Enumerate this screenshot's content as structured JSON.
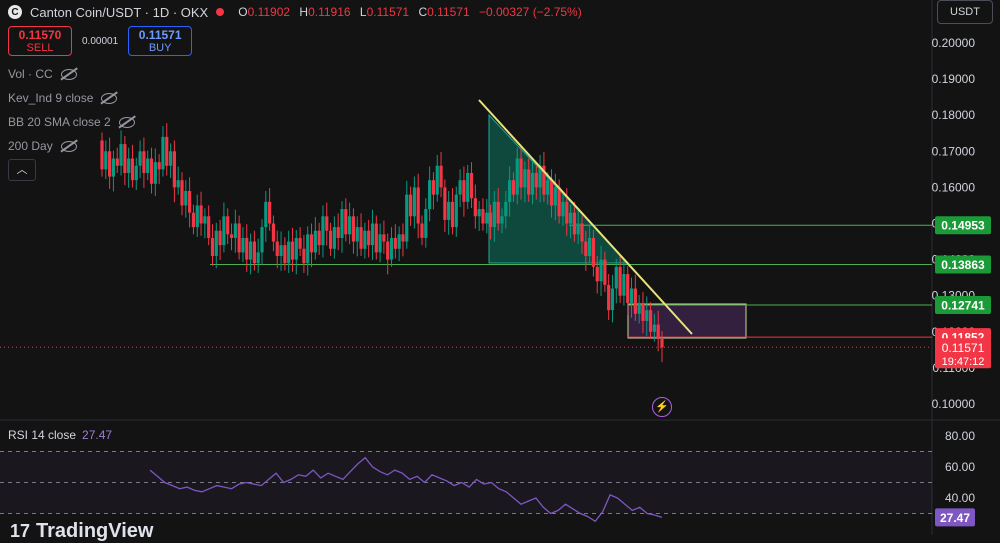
{
  "header": {
    "logo_letter": "C",
    "title": "Canton Coin/USDT · 1D · OKX",
    "ohlc": [
      {
        "k": "O",
        "v": "0.11902"
      },
      {
        "k": "H",
        "v": "0.11916"
      },
      {
        "k": "L",
        "v": "0.11571"
      },
      {
        "k": "C",
        "v": "0.11571"
      }
    ],
    "change": "−0.00327 (−2.75%)"
  },
  "trade": {
    "sell_price": "0.11570",
    "sell_label": "SELL",
    "spread": "0.00001",
    "buy_price": "0.11571",
    "buy_label": "BUY"
  },
  "indicators": [
    {
      "label": "Vol · CC"
    },
    {
      "label": "Kev_Ind 9 close"
    },
    {
      "label": "BB 20 SMA close 2"
    },
    {
      "label": "200 Day"
    }
  ],
  "collapse_glyph": "︿",
  "currency_button": "USDT",
  "rsi": {
    "label": "RSI 14 close",
    "value": "27.47"
  },
  "branding": {
    "mark": "17",
    "name": "TradingView"
  },
  "bolt_glyph": "⚡",
  "colors": {
    "background": "#131313",
    "up": "#089981",
    "down": "#f23645",
    "level_line": "#4caf50",
    "trendline": "#e8e37a",
    "triangle_fill": "#0f5c4c",
    "box_fill": "#3a2246",
    "rsi_line": "#7e57c2"
  },
  "chart_data": {
    "type": "candlestick",
    "price_axis": {
      "range": [
        0.095,
        0.204
      ],
      "ticks": [
        "0.20000",
        "0.19000",
        "0.18000",
        "0.17000",
        "0.16000",
        "0.15000",
        "0.14000",
        "0.13000",
        "0.12000",
        "0.11000",
        "0.10000"
      ]
    },
    "price_labels": [
      {
        "value": 0.14953,
        "text": "0.14953",
        "color": "#1b9b38"
      },
      {
        "value": 0.13863,
        "text": "0.13863",
        "color": "#1b9b38"
      },
      {
        "value": 0.12741,
        "text": "0.12741",
        "color": "#1b9b38"
      },
      {
        "value": 0.11852,
        "text": "0.11852",
        "color": "#f23645"
      }
    ],
    "last_price": {
      "value": 0.11571,
      "text": "0.11571",
      "countdown": "19:47:12"
    },
    "horizontal_levels": [
      0.14953,
      0.13863,
      0.12741
    ],
    "candles": [
      [
        0.173,
        0.165
      ],
      [
        0.165,
        0.17
      ],
      [
        0.17,
        0.163
      ],
      [
        0.163,
        0.168
      ],
      [
        0.168,
        0.166
      ],
      [
        0.166,
        0.172
      ],
      [
        0.172,
        0.164
      ],
      [
        0.164,
        0.168
      ],
      [
        0.168,
        0.162
      ],
      [
        0.162,
        0.166
      ],
      [
        0.166,
        0.17
      ],
      [
        0.17,
        0.164
      ],
      [
        0.164,
        0.168
      ],
      [
        0.168,
        0.161
      ],
      [
        0.161,
        0.167
      ],
      [
        0.167,
        0.165
      ],
      [
        0.165,
        0.174
      ],
      [
        0.174,
        0.166
      ],
      [
        0.166,
        0.17
      ],
      [
        0.17,
        0.16
      ],
      [
        0.16,
        0.162
      ],
      [
        0.162,
        0.155
      ],
      [
        0.155,
        0.159
      ],
      [
        0.159,
        0.153
      ],
      [
        0.153,
        0.149
      ],
      [
        0.149,
        0.155
      ],
      [
        0.155,
        0.15
      ],
      [
        0.15,
        0.152
      ],
      [
        0.152,
        0.146
      ],
      [
        0.146,
        0.141
      ],
      [
        0.141,
        0.148
      ],
      [
        0.148,
        0.144
      ],
      [
        0.144,
        0.152
      ],
      [
        0.152,
        0.147
      ],
      [
        0.147,
        0.146
      ],
      [
        0.146,
        0.15
      ],
      [
        0.15,
        0.142
      ],
      [
        0.142,
        0.146
      ],
      [
        0.146,
        0.14
      ],
      [
        0.14,
        0.145
      ],
      [
        0.145,
        0.139
      ],
      [
        0.139,
        0.142
      ],
      [
        0.142,
        0.149
      ],
      [
        0.149,
        0.156
      ],
      [
        0.156,
        0.15
      ],
      [
        0.15,
        0.145
      ],
      [
        0.145,
        0.141
      ],
      [
        0.141,
        0.144
      ],
      [
        0.144,
        0.139
      ],
      [
        0.139,
        0.145
      ],
      [
        0.145,
        0.14
      ],
      [
        0.14,
        0.146
      ],
      [
        0.146,
        0.143
      ],
      [
        0.143,
        0.139
      ],
      [
        0.139,
        0.147
      ],
      [
        0.147,
        0.142
      ],
      [
        0.142,
        0.148
      ],
      [
        0.148,
        0.144
      ],
      [
        0.144,
        0.152
      ],
      [
        0.152,
        0.148
      ],
      [
        0.148,
        0.143
      ],
      [
        0.143,
        0.149
      ],
      [
        0.149,
        0.146
      ],
      [
        0.146,
        0.154
      ],
      [
        0.154,
        0.147
      ],
      [
        0.147,
        0.152
      ],
      [
        0.152,
        0.145
      ],
      [
        0.145,
        0.149
      ],
      [
        0.149,
        0.143
      ],
      [
        0.143,
        0.148
      ],
      [
        0.148,
        0.144
      ],
      [
        0.144,
        0.15
      ],
      [
        0.15,
        0.142
      ],
      [
        0.142,
        0.147
      ],
      [
        0.147,
        0.145
      ],
      [
        0.145,
        0.14
      ],
      [
        0.14,
        0.146
      ],
      [
        0.146,
        0.143
      ],
      [
        0.143,
        0.147
      ],
      [
        0.147,
        0.145
      ],
      [
        0.145,
        0.158
      ],
      [
        0.158,
        0.152
      ],
      [
        0.152,
        0.16
      ],
      [
        0.16,
        0.15
      ],
      [
        0.15,
        0.146
      ],
      [
        0.146,
        0.154
      ],
      [
        0.154,
        0.162
      ],
      [
        0.162,
        0.158
      ],
      [
        0.158,
        0.166
      ],
      [
        0.166,
        0.16
      ],
      [
        0.16,
        0.151
      ],
      [
        0.151,
        0.156
      ],
      [
        0.156,
        0.149
      ],
      [
        0.149,
        0.158
      ],
      [
        0.158,
        0.162
      ],
      [
        0.162,
        0.156
      ],
      [
        0.156,
        0.164
      ],
      [
        0.164,
        0.157
      ],
      [
        0.157,
        0.152
      ],
      [
        0.152,
        0.154
      ],
      [
        0.154,
        0.15
      ],
      [
        0.15,
        0.153
      ],
      [
        0.153,
        0.149
      ],
      [
        0.149,
        0.156
      ],
      [
        0.156,
        0.15
      ],
      [
        0.15,
        0.152
      ],
      [
        0.152,
        0.156
      ],
      [
        0.156,
        0.162
      ],
      [
        0.162,
        0.158
      ],
      [
        0.158,
        0.168
      ],
      [
        0.168,
        0.16
      ],
      [
        0.16,
        0.165
      ],
      [
        0.165,
        0.158
      ],
      [
        0.158,
        0.164
      ],
      [
        0.164,
        0.16
      ],
      [
        0.16,
        0.166
      ],
      [
        0.166,
        0.158
      ],
      [
        0.158,
        0.162
      ],
      [
        0.162,
        0.155
      ],
      [
        0.155,
        0.16
      ],
      [
        0.16,
        0.152
      ],
      [
        0.152,
        0.156
      ],
      [
        0.156,
        0.15
      ],
      [
        0.15,
        0.153
      ],
      [
        0.153,
        0.147
      ],
      [
        0.147,
        0.15
      ],
      [
        0.15,
        0.145
      ],
      [
        0.145,
        0.141
      ],
      [
        0.141,
        0.146
      ],
      [
        0.146,
        0.138
      ],
      [
        0.138,
        0.134
      ],
      [
        0.134,
        0.14
      ],
      [
        0.14,
        0.133
      ],
      [
        0.133,
        0.126
      ],
      [
        0.126,
        0.132
      ],
      [
        0.132,
        0.138
      ],
      [
        0.138,
        0.13
      ],
      [
        0.13,
        0.136
      ],
      [
        0.136,
        0.128
      ],
      [
        0.128,
        0.132
      ],
      [
        0.132,
        0.125
      ],
      [
        0.125,
        0.128
      ],
      [
        0.128,
        0.123
      ],
      [
        0.123,
        0.126
      ],
      [
        0.126,
        0.12
      ],
      [
        0.12,
        0.122
      ],
      [
        0.122,
        0.118
      ],
      [
        0.118,
        0.1157
      ]
    ],
    "rsi": {
      "axis_ticks": [
        "80.00",
        "60.00",
        "40.00"
      ],
      "range": [
        22,
        84
      ],
      "bands": [
        70,
        50,
        30
      ],
      "values": [
        58,
        54,
        50,
        48,
        46,
        47,
        45,
        44,
        46,
        48,
        47,
        46,
        49,
        50,
        49,
        48,
        52,
        56,
        50,
        52,
        55,
        54,
        58,
        53,
        56,
        54,
        52,
        57,
        62,
        66,
        60,
        57,
        55,
        58,
        56,
        52,
        54,
        50,
        55,
        53,
        51,
        48,
        50,
        47,
        52,
        49,
        50,
        46,
        44,
        40,
        36,
        38,
        40,
        34,
        30,
        32,
        36,
        33,
        30,
        28,
        25,
        31,
        42,
        40,
        36,
        32,
        34,
        30,
        29,
        27.47
      ],
      "value_label": "27.47"
    }
  }
}
